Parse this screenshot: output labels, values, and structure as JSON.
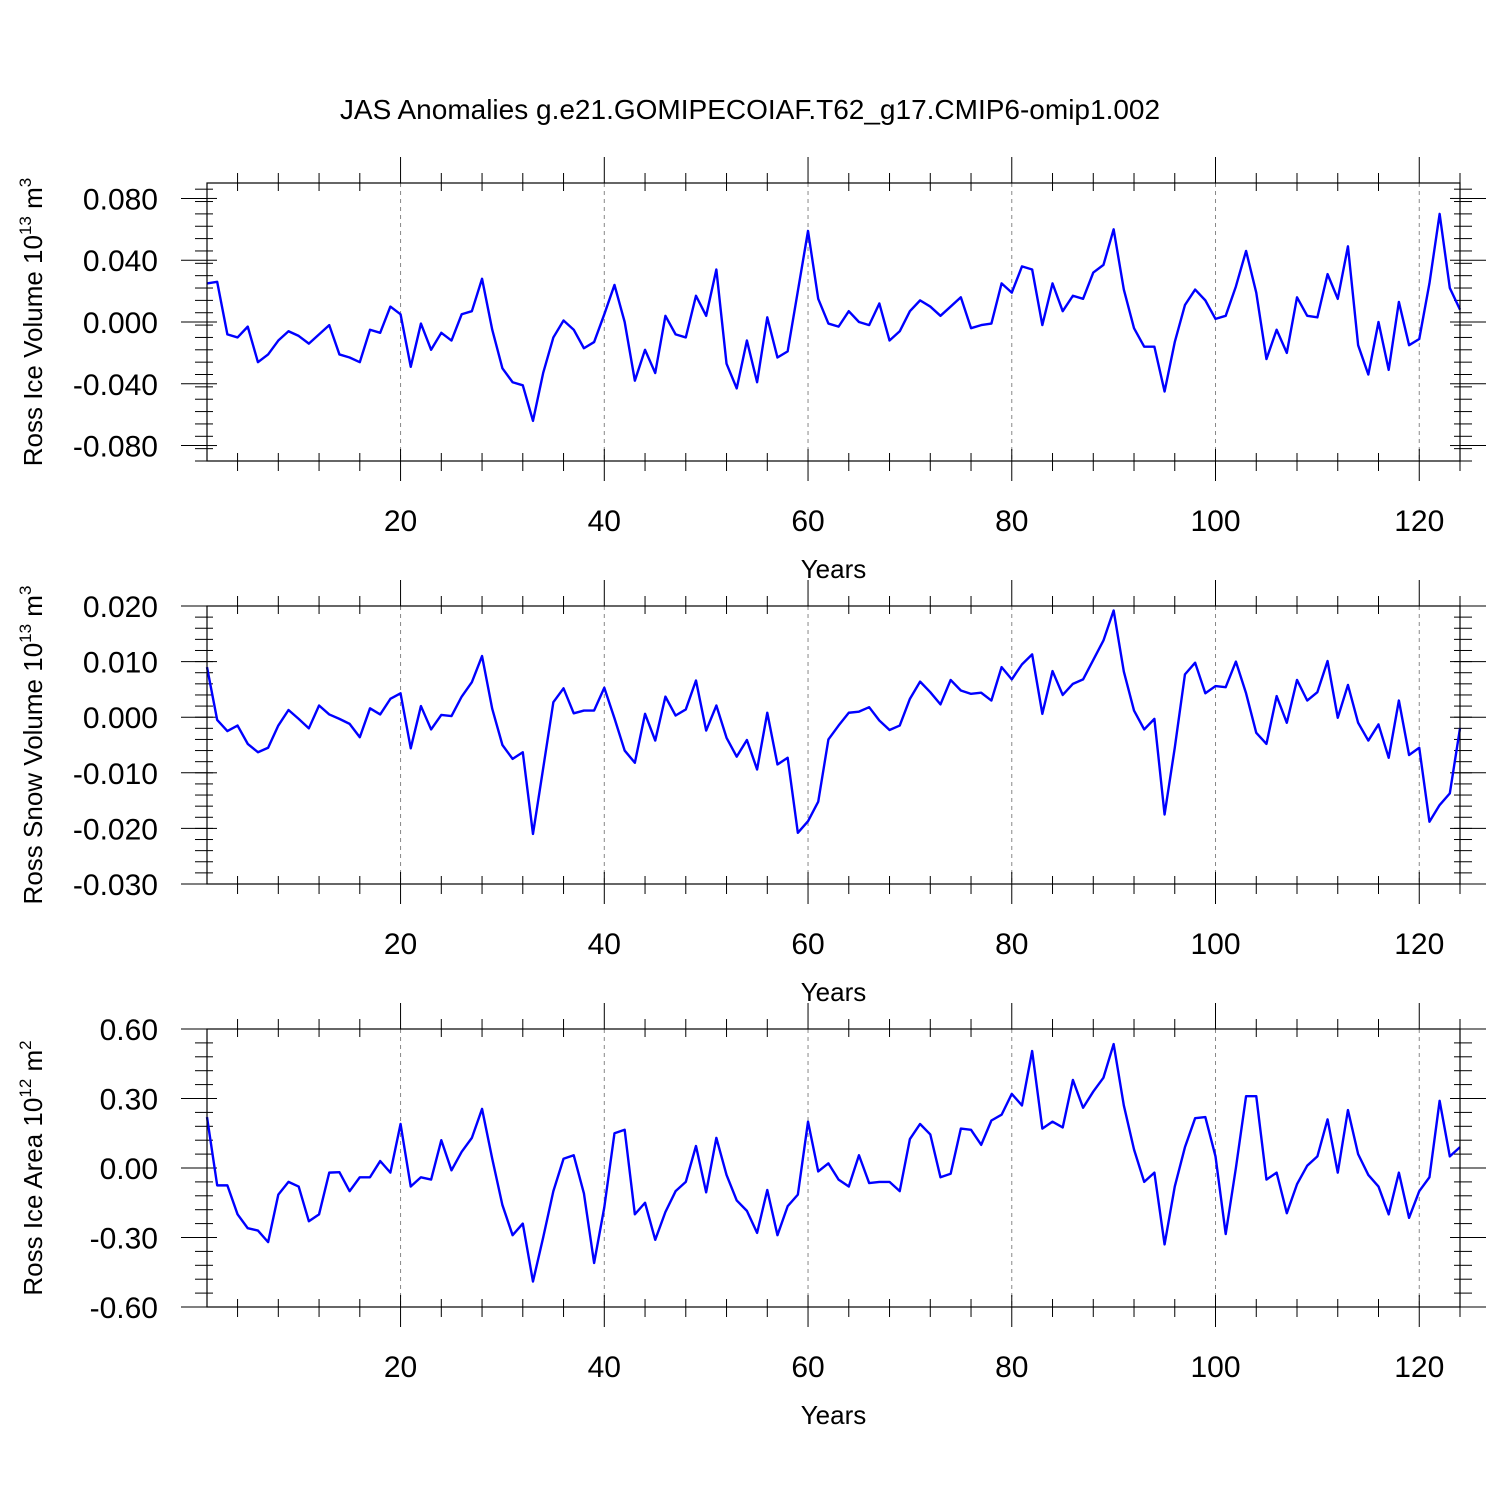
{
  "chart_data": {
    "title": "JAS Anomalies g.e21.GOMIPECOIAF.T62_g17.CMIP6-omip1.002",
    "panels": [
      {
        "type": "line",
        "xlabel": "Years",
        "ylabel_main": "Ross Ice Volume 10",
        "ylabel_exp": "13",
        "ylabel_unit": " m",
        "ylabel_unit_exp": "3",
        "xlim": [
          1,
          124
        ],
        "ylim": [
          -0.09,
          0.09
        ],
        "xticks": [
          20,
          40,
          60,
          80,
          100,
          120
        ],
        "xtick_labels": [
          "20",
          "40",
          "60",
          "80",
          "100",
          "120"
        ],
        "yticks": [
          0.08,
          0.04,
          0.0,
          -0.04,
          -0.08
        ],
        "ytick_labels": [
          "0.080",
          "0.040",
          "0.000",
          "-0.040",
          "-0.080"
        ],
        "series": [
          {
            "name": "Ross Ice Volume",
            "color": "#0000ff",
            "values": [
              0.025,
              0.026,
              -0.008,
              -0.01,
              -0.003,
              -0.026,
              -0.021,
              -0.012,
              -0.006,
              -0.009,
              -0.014,
              -0.008,
              -0.002,
              -0.021,
              -0.023,
              -0.026,
              -0.005,
              -0.007,
              0.01,
              0.005,
              -0.029,
              -0.001,
              -0.018,
              -0.007,
              -0.012,
              0.005,
              0.007,
              0.028,
              -0.005,
              -0.03,
              -0.039,
              -0.041,
              -0.064,
              -0.033,
              -0.01,
              0.001,
              -0.005,
              -0.017,
              -0.013,
              0.005,
              0.024,
              0.0,
              -0.038,
              -0.018,
              -0.033,
              0.004,
              -0.008,
              -0.01,
              0.017,
              0.004,
              0.034,
              -0.027,
              -0.043,
              -0.012,
              -0.039,
              0.003,
              -0.023,
              -0.019,
              0.02,
              0.059,
              0.015,
              -0.001,
              -0.003,
              0.007,
              0.0,
              -0.002,
              0.012,
              -0.012,
              -0.006,
              0.007,
              0.014,
              0.01,
              0.004,
              0.01,
              0.016,
              -0.004,
              -0.002,
              -0.001,
              0.025,
              0.019,
              0.036,
              0.034,
              -0.002,
              0.025,
              0.007,
              0.017,
              0.015,
              0.032,
              0.037,
              0.06,
              0.021,
              -0.004,
              -0.016,
              -0.016,
              -0.045,
              -0.013,
              0.011,
              0.021,
              0.014,
              0.002,
              0.004,
              0.023,
              0.046,
              0.019,
              -0.024,
              -0.005,
              -0.02,
              0.016,
              0.004,
              0.003,
              0.031,
              0.015,
              0.049,
              -0.015,
              -0.034,
              0.0,
              -0.031,
              0.013,
              -0.015,
              -0.011,
              0.025,
              0.07,
              0.022,
              0.008
            ]
          }
        ]
      },
      {
        "type": "line",
        "xlabel": "Years",
        "ylabel_main": "Ross Snow Volume 10",
        "ylabel_exp": "13",
        "ylabel_unit": " m",
        "ylabel_unit_exp": "3",
        "xlim": [
          1,
          124
        ],
        "ylim": [
          -0.03,
          0.02
        ],
        "xticks": [
          20,
          40,
          60,
          80,
          100,
          120
        ],
        "xtick_labels": [
          "20",
          "40",
          "60",
          "80",
          "100",
          "120"
        ],
        "yticks": [
          0.02,
          0.01,
          0.0,
          -0.01,
          -0.02,
          -0.03
        ],
        "ytick_labels": [
          "0.020",
          "0.010",
          "0.000",
          "-0.010",
          "-0.020",
          "-0.030"
        ],
        "series": [
          {
            "name": "Ross Snow Volume",
            "color": "#0000ff",
            "values": [
              0.009,
              -0.0005,
              -0.0025,
              -0.0015,
              -0.0048,
              -0.0063,
              -0.0055,
              -0.0015,
              0.0013,
              -0.0003,
              -0.002,
              0.0021,
              0.0005,
              -0.0003,
              -0.0012,
              -0.0036,
              0.0016,
              0.0005,
              0.0033,
              0.0043,
              -0.0056,
              0.002,
              -0.0022,
              0.0004,
              0.0002,
              0.0037,
              0.0063,
              0.011,
              0.0015,
              -0.005,
              -0.0075,
              -0.0063,
              -0.021,
              -0.0092,
              0.0027,
              0.0052,
              0.0007,
              0.0012,
              0.0012,
              0.0053,
              -0.0002,
              -0.006,
              -0.0082,
              0.0006,
              -0.0042,
              0.0037,
              0.0003,
              0.0014,
              0.0066,
              -0.0024,
              0.0021,
              -0.0037,
              -0.0071,
              -0.0041,
              -0.0094,
              0.0008,
              -0.0085,
              -0.0073,
              -0.0208,
              -0.0187,
              -0.0152,
              -0.004,
              -0.0015,
              0.0008,
              0.001,
              0.0018,
              -0.0006,
              -0.0023,
              -0.0015,
              0.0033,
              0.0064,
              0.0045,
              0.0023,
              0.0067,
              0.0048,
              0.0042,
              0.0044,
              0.003,
              0.009,
              0.0068,
              0.0095,
              0.0113,
              0.0006,
              0.0083,
              0.004,
              0.006,
              0.0068,
              0.0103,
              0.0138,
              0.0192,
              0.0082,
              0.0012,
              -0.0022,
              -0.0003,
              -0.0175,
              -0.0055,
              0.0077,
              0.0098,
              0.0043,
              0.0056,
              0.0054,
              0.01,
              0.0043,
              -0.0028,
              -0.0048,
              0.0038,
              -0.001,
              0.0067,
              0.003,
              0.0045,
              0.0101,
              -0.0001,
              0.0058,
              -0.001,
              -0.0042,
              -0.0013,
              -0.0073,
              0.003,
              -0.0068,
              -0.0055,
              -0.0188,
              -0.0158,
              -0.0137,
              -0.002
            ]
          }
        ]
      },
      {
        "type": "line",
        "xlabel": "Years",
        "ylabel_main": "Ross Ice Area 10",
        "ylabel_exp": "12",
        "ylabel_unit": " m",
        "ylabel_unit_exp": "2",
        "xlim": [
          1,
          124
        ],
        "ylim": [
          -0.6,
          0.6
        ],
        "xticks": [
          20,
          40,
          60,
          80,
          100,
          120
        ],
        "xtick_labels": [
          "20",
          "40",
          "60",
          "80",
          "100",
          "120"
        ],
        "yticks": [
          0.6,
          0.3,
          0.0,
          -0.3,
          -0.6
        ],
        "ytick_labels": [
          "0.60",
          "0.30",
          "0.00",
          "-0.30",
          "-0.60"
        ],
        "series": [
          {
            "name": "Ross Ice Area",
            "color": "#0000ff",
            "values": [
              0.22,
              -0.075,
              -0.075,
              -0.2,
              -0.26,
              -0.27,
              -0.32,
              -0.115,
              -0.06,
              -0.08,
              -0.23,
              -0.2,
              -0.02,
              -0.018,
              -0.1,
              -0.04,
              -0.04,
              0.03,
              -0.02,
              0.19,
              -0.08,
              -0.04,
              -0.05,
              0.12,
              -0.01,
              0.07,
              0.13,
              0.255,
              0.04,
              -0.16,
              -0.29,
              -0.24,
              -0.49,
              -0.3,
              -0.1,
              0.04,
              0.055,
              -0.11,
              -0.41,
              -0.17,
              0.15,
              0.165,
              -0.2,
              -0.15,
              -0.31,
              -0.19,
              -0.1,
              -0.06,
              0.095,
              -0.105,
              0.13,
              -0.03,
              -0.14,
              -0.185,
              -0.28,
              -0.095,
              -0.29,
              -0.165,
              -0.115,
              0.2,
              -0.015,
              0.02,
              -0.05,
              -0.08,
              0.055,
              -0.065,
              -0.06,
              -0.06,
              -0.1,
              0.125,
              0.19,
              0.145,
              -0.04,
              -0.025,
              0.17,
              0.165,
              0.1,
              0.205,
              0.23,
              0.32,
              0.27,
              0.505,
              0.17,
              0.2,
              0.175,
              0.38,
              0.26,
              0.33,
              0.39,
              0.535,
              0.27,
              0.08,
              -0.06,
              -0.02,
              -0.33,
              -0.08,
              0.09,
              0.215,
              0.22,
              0.05,
              -0.285,
              0.0,
              0.31,
              0.31,
              -0.05,
              -0.02,
              -0.195,
              -0.07,
              0.01,
              0.05,
              0.21,
              -0.02,
              0.25,
              0.06,
              -0.03,
              -0.08,
              -0.2,
              -0.02,
              -0.215,
              -0.1,
              -0.04,
              0.29,
              0.05,
              0.09
            ]
          }
        ]
      }
    ]
  }
}
